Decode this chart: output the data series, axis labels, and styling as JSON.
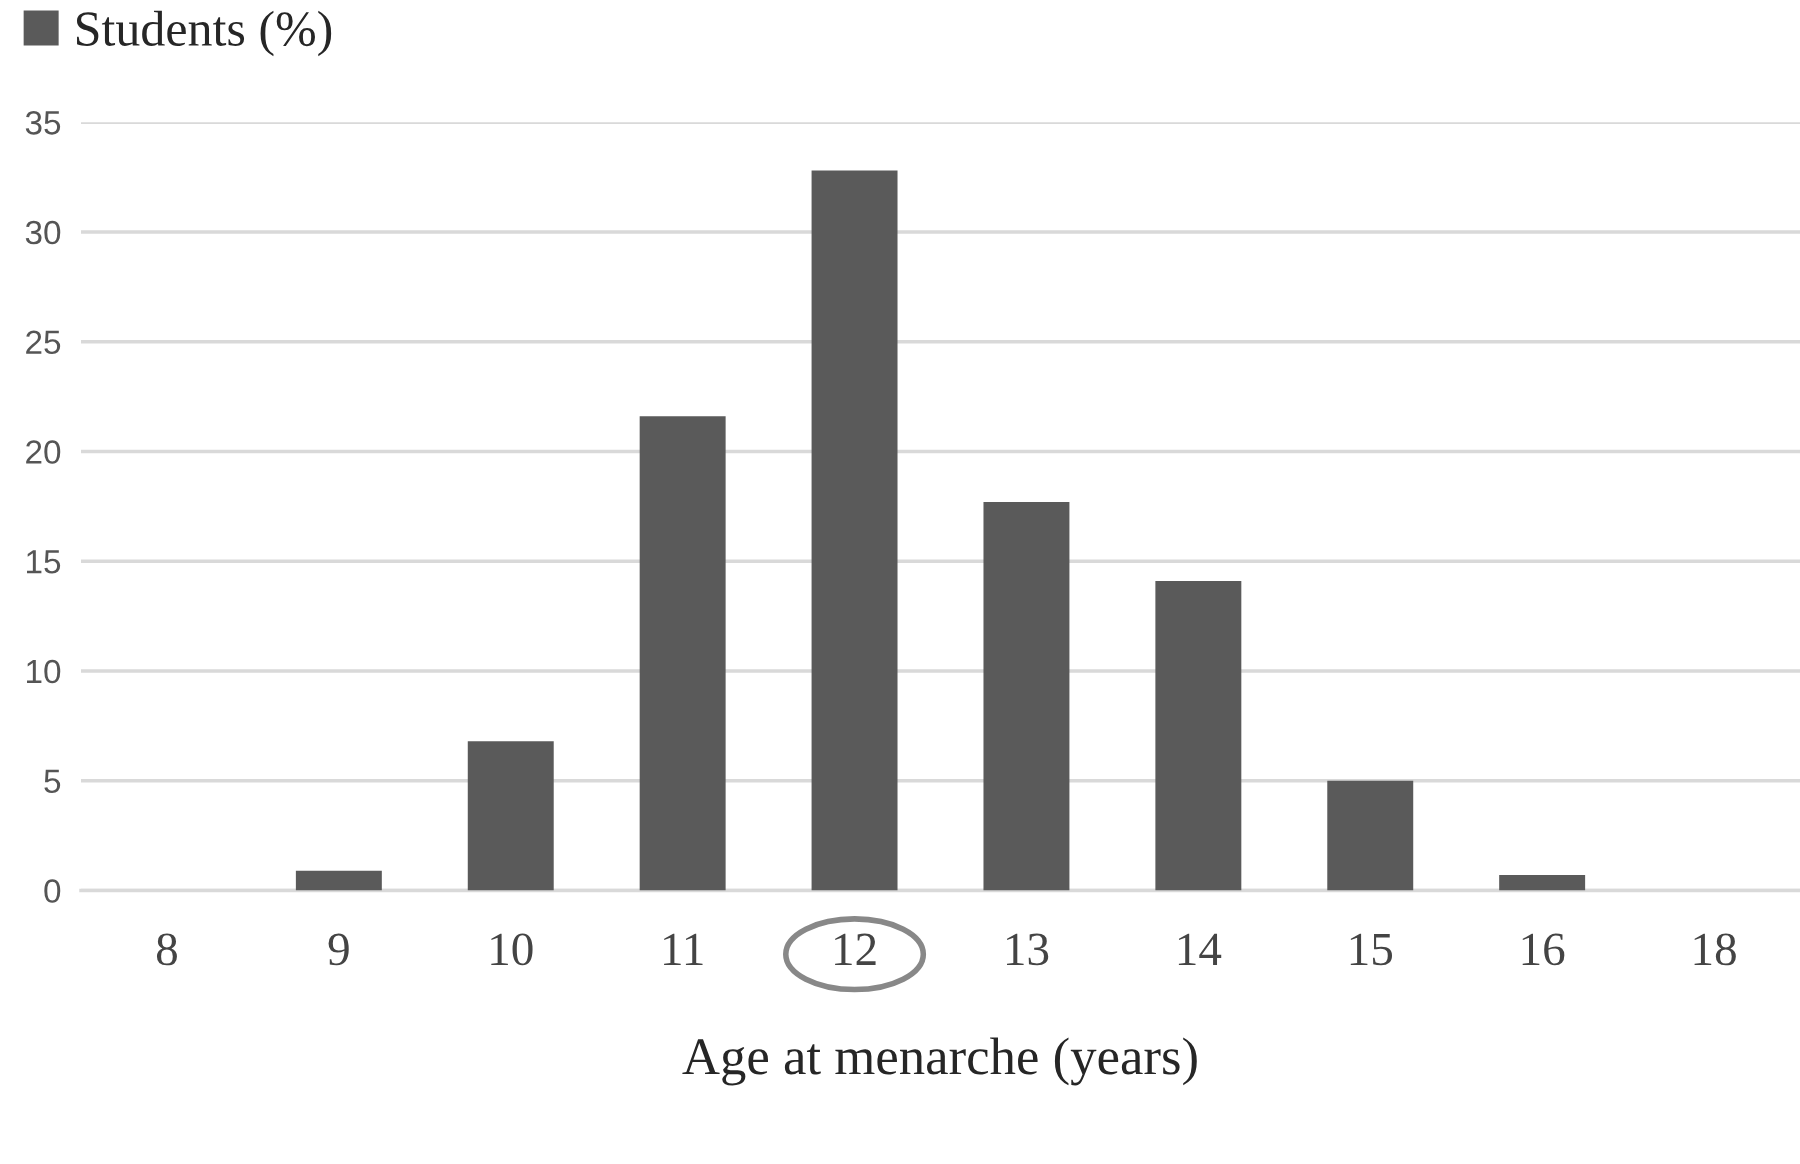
{
  "chart_data": {
    "type": "bar",
    "xlabel": "Age at menarche (years)",
    "categories": [
      "8",
      "9",
      "10",
      "11",
      "12",
      "13",
      "14",
      "15",
      "16",
      "18"
    ],
    "series": [
      {
        "name": "Students (%)",
        "color": "#5a5a5a",
        "values": [
          0,
          0.9,
          6.8,
          21.6,
          32.8,
          17.7,
          14.1,
          5.0,
          0.7,
          0
        ]
      }
    ],
    "ylim": [
      0,
      35
    ],
    "yticks": [
      0,
      5,
      10,
      15,
      20,
      25,
      30,
      35
    ],
    "grid": "y",
    "legend": "top left"
  }
}
